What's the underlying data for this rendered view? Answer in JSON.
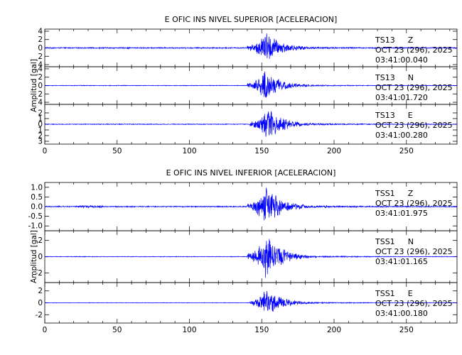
{
  "chart_data": [
    {
      "type": "line",
      "title": "E OFIC INS NIVEL SUPERIOR [ACELERACION]",
      "ylabel": "Amplitud [gal]",
      "xlim": [
        0,
        285
      ],
      "xticks": [
        "0",
        "50",
        "100",
        "150",
        "200",
        "250"
      ],
      "traces": [
        {
          "station": "TS13",
          "component": "Z",
          "date": "OCT 23 (296), 2025",
          "time": "03:41:00.040",
          "ylim": [
            -4.5,
            4.5
          ],
          "yticks": [
            {
              "value": 4,
              "label": "4"
            },
            {
              "value": 2,
              "label": "2"
            },
            {
              "value": 0,
              "label": "0"
            },
            {
              "value": -2,
              "label": "2"
            },
            {
              "value": -4,
              "label": "4"
            }
          ],
          "onset": 140,
          "peak_time": 153,
          "peak_amplitude": 4.3,
          "pre_noise": 0.15,
          "coda_noise": 0.5
        },
        {
          "station": "TS13",
          "component": "N",
          "date": "OCT 23 (296), 2025",
          "time": "03:41:01.720",
          "ylim": [
            -4.5,
            4.5
          ],
          "yticks": [
            {
              "value": 4,
              "label": "4"
            },
            {
              "value": 2,
              "label": "2"
            },
            {
              "value": 0,
              "label": "0"
            },
            {
              "value": -2,
              "label": "2"
            },
            {
              "value": -4,
              "label": "4"
            }
          ],
          "onset": 140,
          "peak_time": 152,
          "peak_amplitude": 4.0,
          "pre_noise": 0.08,
          "coda_noise": 0.3
        },
        {
          "station": "TS13",
          "component": "E",
          "date": "OCT 23 (296), 2025",
          "time": "03:41:00.280",
          "ylim": [
            -3.5,
            3.5
          ],
          "yticks": [
            {
              "value": 2,
              "label": "2"
            },
            {
              "value": 1,
              "label": "1"
            },
            {
              "value": 0,
              "label": "0"
            },
            {
              "value": -1,
              "label": "1"
            },
            {
              "value": -2,
              "label": "2"
            },
            {
              "value": -3,
              "label": "3"
            }
          ],
          "onset": 142,
          "peak_time": 155,
          "peak_amplitude": 3.3,
          "pre_noise": 0.07,
          "coda_noise": 0.3
        }
      ]
    },
    {
      "type": "line",
      "title": "E OFIC INS NIVEL INFERIOR [ACELERACION]",
      "ylabel": "Amplitud [gal]",
      "xlim": [
        0,
        285
      ],
      "xticks": [
        "0",
        "50",
        "100",
        "150",
        "200",
        "250"
      ],
      "traces": [
        {
          "station": "TSS1",
          "component": "Z",
          "date": "OCT 23 (296), 2025",
          "time": "03:41:01.975",
          "ylim": [
            -1.25,
            1.25
          ],
          "yticks": [
            {
              "value": 1.0,
              "label": "1.0"
            },
            {
              "value": 0.5,
              "label": "0.5"
            },
            {
              "value": 0.0,
              "label": "0.0"
            },
            {
              "value": -0.5,
              "label": "-0.5"
            },
            {
              "value": -1.0,
              "label": "-1.0"
            }
          ],
          "onset": 140,
          "peak_time": 153,
          "peak_amplitude": 1.15,
          "pre_noise": 0.03,
          "coda_noise": 0.12
        },
        {
          "station": "TSS1",
          "component": "N",
          "date": "OCT 23 (296), 2025",
          "time": "03:41:01.165",
          "ylim": [
            -3.2,
            3.2
          ],
          "yticks": [
            {
              "value": 2,
              "label": "2"
            },
            {
              "value": 0,
              "label": "0"
            },
            {
              "value": -2,
              "label": "-2"
            }
          ],
          "onset": 140,
          "peak_time": 153,
          "peak_amplitude": 3.0,
          "pre_noise": 0.04,
          "coda_noise": 0.2
        },
        {
          "station": "TSS1",
          "component": "E",
          "date": "OCT 23 (296), 2025",
          "time": "03:41:00.180",
          "ylim": [
            -3.4,
            3.4
          ],
          "yticks": [
            {
              "value": 2,
              "label": "2"
            },
            {
              "value": 0,
              "label": "0"
            },
            {
              "value": -2,
              "label": "-2"
            }
          ],
          "onset": 142,
          "peak_time": 153,
          "peak_amplitude": 2.7,
          "pre_noise": 0.04,
          "coda_noise": 0.2
        }
      ]
    }
  ],
  "colors": {
    "trace": "#0000ff",
    "axis": "#000000",
    "background": "#ffffff"
  }
}
